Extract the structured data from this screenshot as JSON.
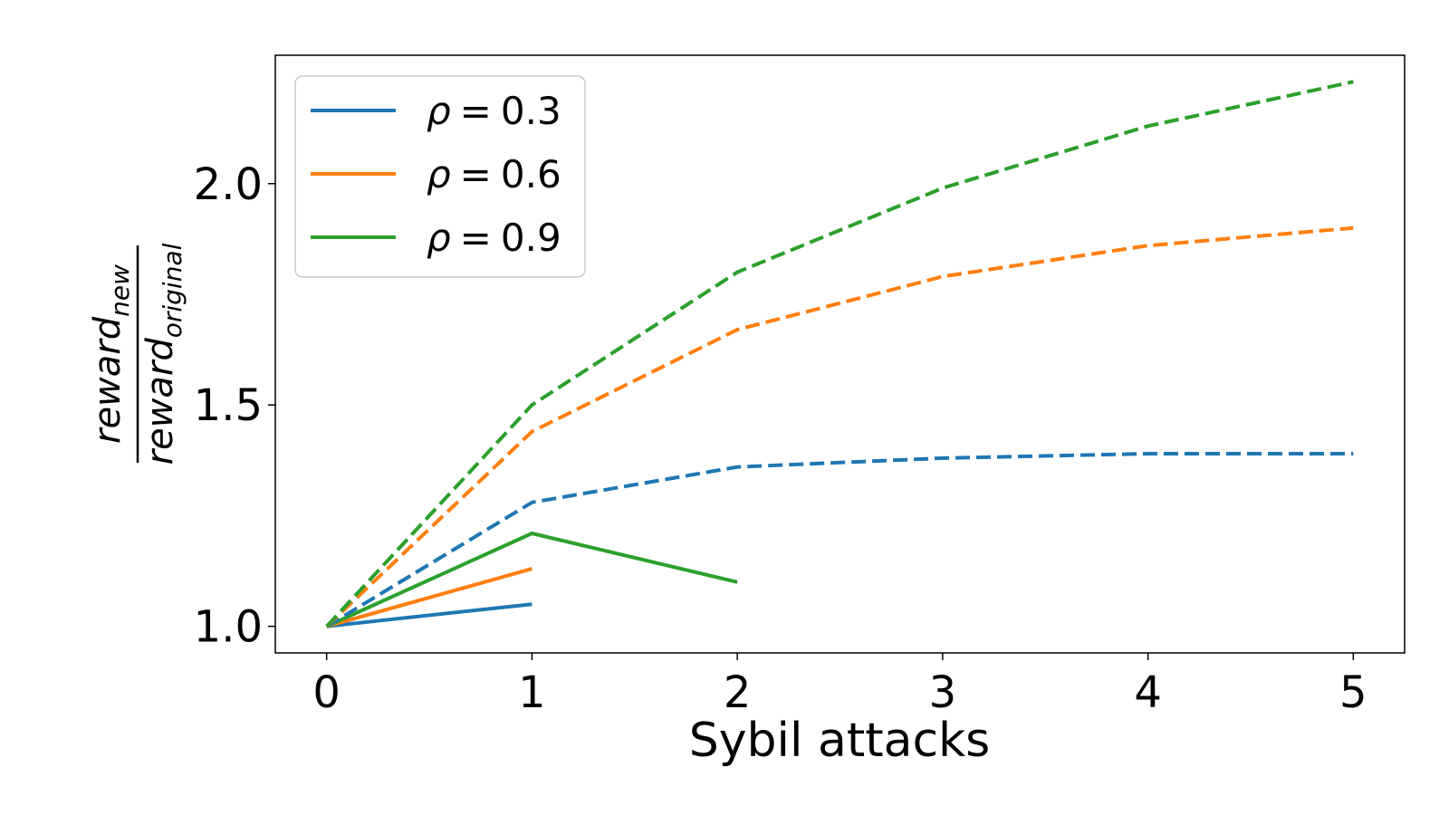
{
  "chart_data": {
    "type": "line",
    "title": "",
    "xlabel": "Sybil attacks",
    "ylabel": {
      "numerator": "reward",
      "numerator_sub": "new",
      "denominator": "reward",
      "denominator_sub": "original"
    },
    "xlim": [
      -0.25,
      5.25
    ],
    "ylim": [
      0.94,
      2.29
    ],
    "xticks": [
      0,
      1,
      2,
      3,
      4,
      5
    ],
    "yticks": [
      1.0,
      1.5,
      2.0
    ],
    "ytick_labels": [
      "1.0",
      "1.5",
      "2.0"
    ],
    "grid": false,
    "legend_position": "top-left",
    "series": [
      {
        "name": "ρ = 0.3",
        "color": "#1f77b4",
        "style": "solid",
        "x": [
          0,
          1
        ],
        "y": [
          1.0,
          1.05
        ]
      },
      {
        "name": "ρ = 0.6",
        "color": "#ff7f0e",
        "style": "solid",
        "x": [
          0,
          1
        ],
        "y": [
          1.0,
          1.13
        ]
      },
      {
        "name": "ρ = 0.9",
        "color": "#2ca02c",
        "style": "solid",
        "x": [
          0,
          1,
          2
        ],
        "y": [
          1.0,
          1.21,
          1.1
        ]
      },
      {
        "name": "",
        "color": "#1f77b4",
        "style": "dashed",
        "x": [
          0,
          1,
          2,
          3,
          4,
          5
        ],
        "y": [
          1.0,
          1.28,
          1.36,
          1.38,
          1.39,
          1.39
        ]
      },
      {
        "name": "",
        "color": "#ff7f0e",
        "style": "dashed",
        "x": [
          0,
          1,
          2,
          3,
          4,
          5
        ],
        "y": [
          1.0,
          1.44,
          1.67,
          1.79,
          1.86,
          1.9
        ]
      },
      {
        "name": "",
        "color": "#2ca02c",
        "style": "dashed",
        "x": [
          0,
          1,
          2,
          3,
          4,
          5
        ],
        "y": [
          1.0,
          1.5,
          1.8,
          1.99,
          2.13,
          2.23
        ]
      }
    ],
    "legend": [
      {
        "rho": "ρ",
        "eq": "=",
        "value": "0.3",
        "color": "#1f77b4"
      },
      {
        "rho": "ρ",
        "eq": "=",
        "value": "0.6",
        "color": "#ff7f0e"
      },
      {
        "rho": "ρ",
        "eq": "=",
        "value": "0.9",
        "color": "#2ca02c"
      }
    ]
  }
}
